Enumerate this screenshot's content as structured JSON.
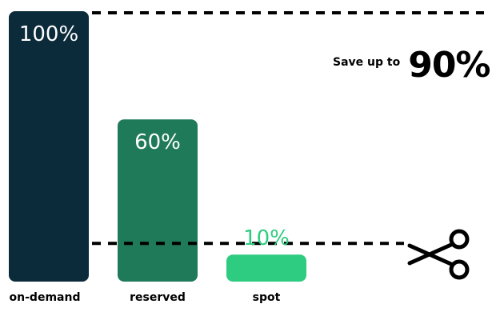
{
  "chart_data": {
    "type": "bar",
    "categories": [
      "on-demand",
      "reserved",
      "spot"
    ],
    "values": [
      100,
      60,
      10
    ],
    "value_labels": [
      "100%",
      "60%",
      "10%"
    ],
    "ylim": [
      0,
      100
    ],
    "grid": false,
    "reference_lines": [
      100,
      10
    ],
    "colors": [
      "#0b2a3a",
      "#1f7a5a",
      "#2ecc80"
    ],
    "label_colors": [
      "#ffffff",
      "#ffffff",
      "#2ecc80"
    ],
    "axis_label_color": "#000000"
  },
  "callout": {
    "prefix": "Save up to",
    "value": "90%"
  },
  "icons": {
    "cut": "scissors-icon"
  }
}
